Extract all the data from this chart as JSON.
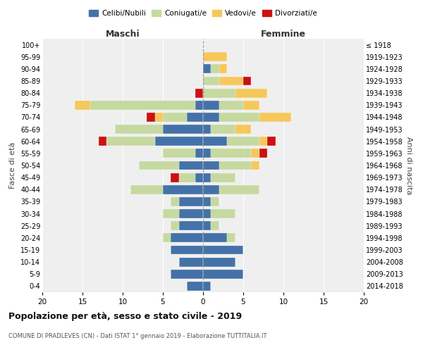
{
  "age_groups": [
    "0-4",
    "5-9",
    "10-14",
    "15-19",
    "20-24",
    "25-29",
    "30-34",
    "35-39",
    "40-44",
    "45-49",
    "50-54",
    "55-59",
    "60-64",
    "65-69",
    "70-74",
    "75-79",
    "80-84",
    "85-89",
    "90-94",
    "95-99",
    "100+"
  ],
  "birth_years": [
    "2014-2018",
    "2009-2013",
    "2004-2008",
    "1999-2003",
    "1994-1998",
    "1989-1993",
    "1984-1988",
    "1979-1983",
    "1974-1978",
    "1969-1973",
    "1964-1968",
    "1959-1963",
    "1954-1958",
    "1949-1953",
    "1944-1948",
    "1939-1943",
    "1934-1938",
    "1929-1933",
    "1924-1928",
    "1919-1923",
    "≤ 1918"
  ],
  "colors": {
    "celibi": "#4472a8",
    "coniugati": "#c5d9a0",
    "vedovi": "#f5c85c",
    "divorziati": "#cc1111"
  },
  "maschi": {
    "celibi": [
      2,
      4,
      3,
      4,
      4,
      3,
      3,
      3,
      5,
      1,
      3,
      1,
      6,
      5,
      2,
      1,
      0,
      0,
      0,
      0,
      0
    ],
    "coniugati": [
      0,
      0,
      0,
      0,
      1,
      1,
      2,
      1,
      4,
      2,
      5,
      4,
      6,
      6,
      3,
      13,
      0,
      0,
      0,
      0,
      0
    ],
    "vedovi": [
      0,
      0,
      0,
      0,
      0,
      0,
      0,
      0,
      0,
      0,
      0,
      0,
      0,
      0,
      1,
      2,
      0,
      0,
      0,
      0,
      0
    ],
    "divorziati": [
      0,
      0,
      0,
      0,
      0,
      0,
      0,
      0,
      0,
      1,
      0,
      0,
      1,
      0,
      1,
      0,
      1,
      0,
      0,
      0,
      0
    ]
  },
  "femmine": {
    "celibi": [
      1,
      5,
      4,
      5,
      3,
      1,
      1,
      1,
      2,
      1,
      2,
      1,
      3,
      1,
      2,
      2,
      0,
      0,
      1,
      0,
      0
    ],
    "coniugati": [
      0,
      0,
      0,
      0,
      1,
      1,
      3,
      1,
      5,
      3,
      4,
      5,
      4,
      3,
      5,
      3,
      4,
      2,
      1,
      0,
      0
    ],
    "vedovi": [
      0,
      0,
      0,
      0,
      0,
      0,
      0,
      0,
      0,
      0,
      1,
      1,
      1,
      2,
      4,
      2,
      4,
      3,
      1,
      3,
      0
    ],
    "divorziati": [
      0,
      0,
      0,
      0,
      0,
      0,
      0,
      0,
      0,
      0,
      0,
      1,
      1,
      0,
      0,
      0,
      0,
      1,
      0,
      0,
      0
    ]
  },
  "xlim": 20,
  "title": "Popolazione per età, sesso e stato civile - 2019",
  "subtitle": "COMUNE DI PRADLEVES (CN) - Dati ISTAT 1° gennaio 2019 - Elaborazione TUTTITALIA.IT",
  "ylabel_left": "Fasce di età",
  "ylabel_right": "Anni di nascita",
  "xlabel_maschi": "Maschi",
  "xlabel_femmine": "Femmine",
  "legend_labels": [
    "Celibi/Nubili",
    "Coniugati/e",
    "Vedovi/e",
    "Divorziati/e"
  ],
  "bg_color": "#efefef"
}
